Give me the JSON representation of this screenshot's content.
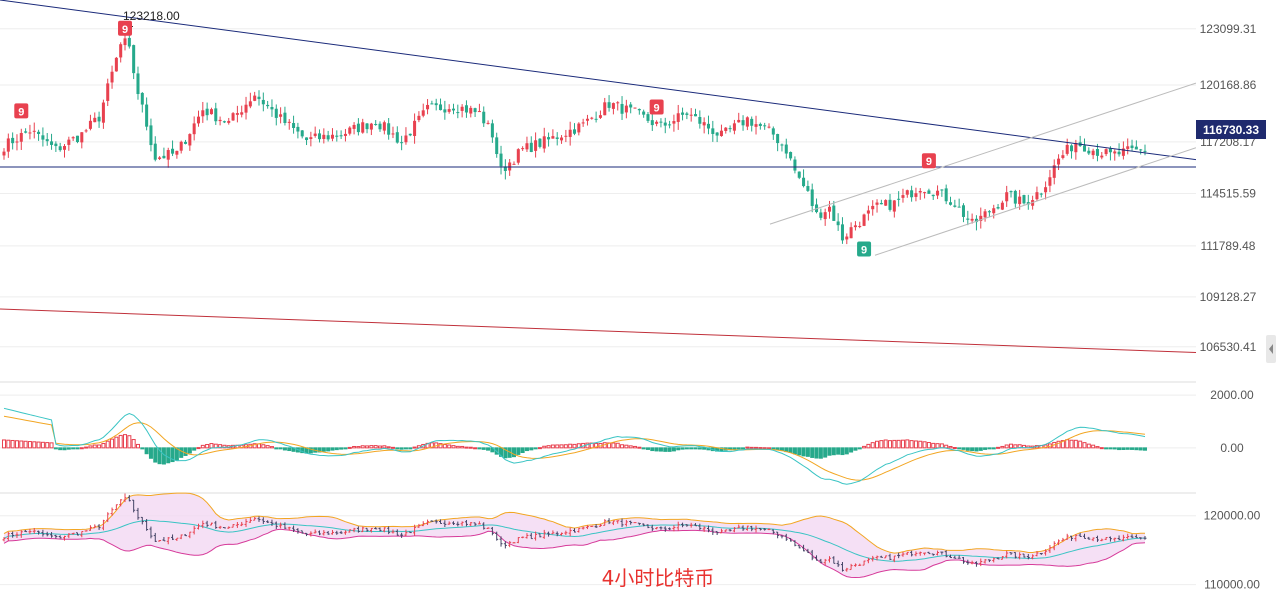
{
  "chart_data": [
    {
      "type": "candlestick",
      "interval_caption": "4小时比特币",
      "y_ticks": [
        "123099.31",
        "120168.86",
        "117208.17",
        "114515.59",
        "111789.48",
        "109128.27",
        "106530.41"
      ],
      "ylim": [
        104800,
        124600
      ],
      "current_price": "116730.33",
      "last_price": 116730.33,
      "high_annotation": "123218.00",
      "high_value": 123218.0,
      "td_sequential_labels": [
        "9",
        "9",
        "9",
        "9",
        "9"
      ],
      "horizontal_level": 115900,
      "grid": true,
      "colors": {
        "up": "#e8414f",
        "down": "#26a98b",
        "trendline": "#1a2a7a",
        "red_line": "#c0303a",
        "channel": "#bbbbbb",
        "price_tag": "#1f2a6e",
        "td_up": "#e8414f",
        "td_down": "#26a98b"
      }
    },
    {
      "type": "macd",
      "y_ticks": [
        "2000.00",
        "0.00"
      ],
      "ylim": [
        -1600,
        2500
      ],
      "colors": {
        "dif": "#3ac4c4",
        "dea": "#f2a623",
        "hist_up": "#e8414f",
        "hist_down": "#26a98b"
      }
    },
    {
      "type": "bollinger",
      "y_ticks": [
        "120000.00",
        "110000.00"
      ],
      "ylim": [
        108500,
        123000
      ],
      "colors": {
        "upper": "#f2a623",
        "lower": "#d63b9a",
        "mid": "#3ac4c4",
        "fill": "#f3d8f2"
      }
    }
  ]
}
